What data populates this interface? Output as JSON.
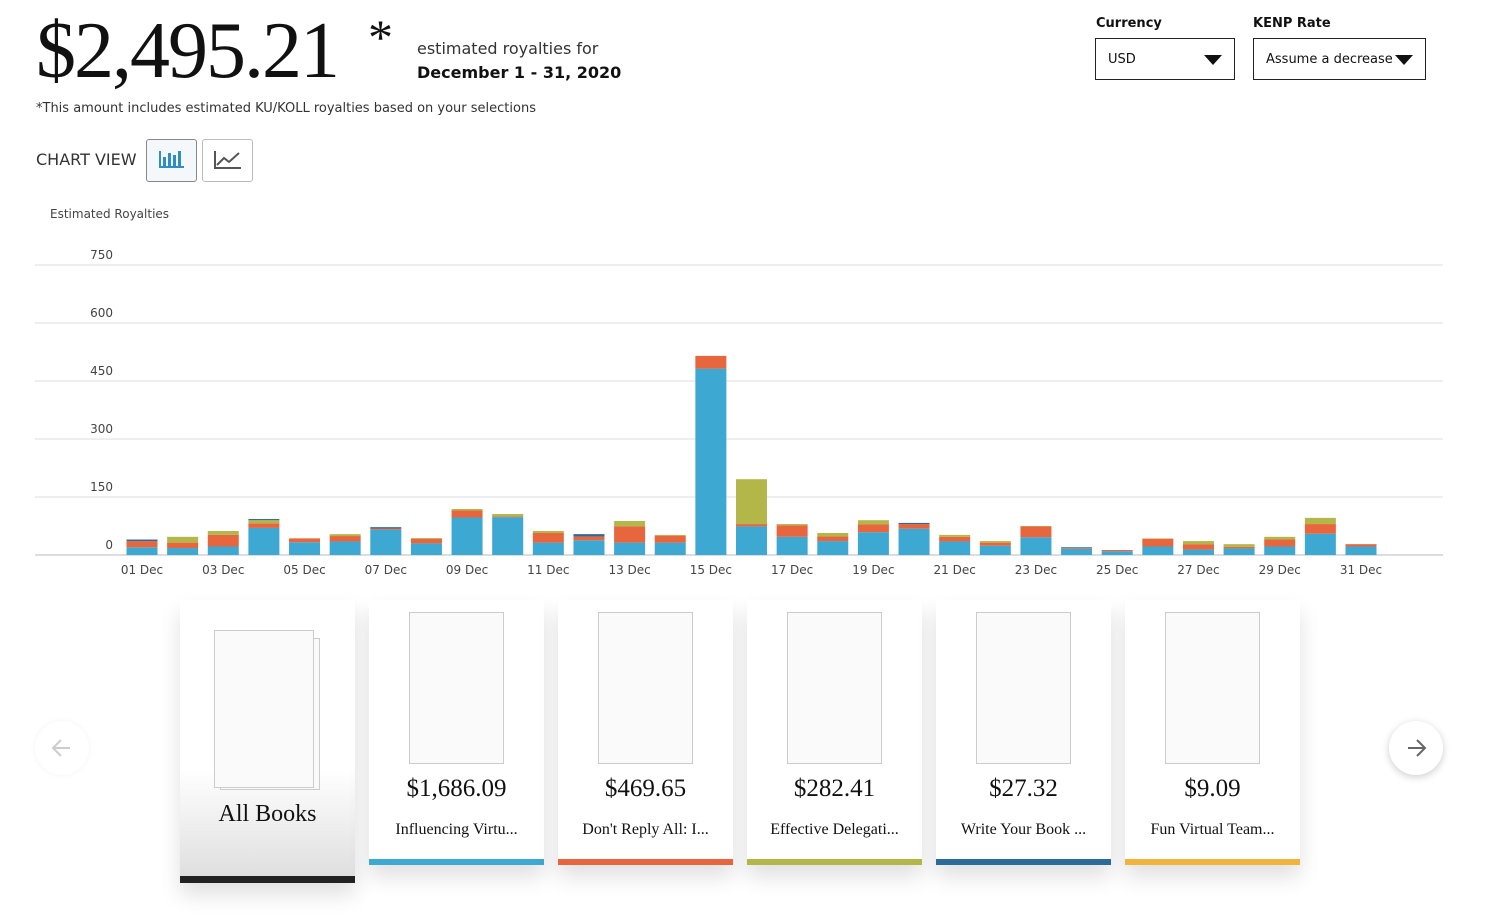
{
  "header": {
    "amount": "$2,495.21",
    "asterisk": "*",
    "caption": "estimated royalties for",
    "period": "December 1 - 31, 2020",
    "note": "*This amount includes estimated KU/KOLL royalties based on your selections",
    "chart_view": "CHART VIEW"
  },
  "controls": {
    "currency_label": "Currency",
    "currency_value": "USD",
    "kenp_label": "KENP Rate",
    "kenp_value": "Assume a decrease"
  },
  "chart_data": {
    "type": "stacked-bar",
    "y_label": "Estimated Royalties",
    "categories": [
      "01 Dec",
      null,
      "03 Dec",
      null,
      "05 Dec",
      null,
      "07 Dec",
      null,
      "09 Dec",
      null,
      "11 Dec",
      null,
      "13 Dec",
      null,
      "15 Dec",
      null,
      "17 Dec",
      null,
      "19 Dec",
      null,
      "21 Dec",
      null,
      "23 Dec",
      null,
      "25 Dec",
      null,
      "27 Dec",
      null,
      "29 Dec",
      null,
      "31 Dec"
    ],
    "series": [
      {
        "color": "#3da8d1",
        "values": [
          20,
          18,
          22,
          70,
          33,
          35,
          65,
          30,
          97,
          98,
          32,
          38,
          32,
          32,
          482,
          74,
          47,
          36,
          59,
          68,
          35,
          24,
          46,
          16,
          10,
          22,
          14,
          17,
          22,
          55,
          22
        ]
      },
      {
        "color": "#e8663d",
        "values": [
          16,
          14,
          30,
          12,
          10,
          14,
          3,
          12,
          18,
          2,
          25,
          10,
          42,
          18,
          33,
          6,
          30,
          12,
          20,
          12,
          12,
          8,
          28,
          2,
          3,
          20,
          14,
          4,
          18,
          25,
          6
        ]
      },
      {
        "color": "#b3b74a",
        "values": [
          0,
          15,
          10,
          8,
          0,
          5,
          0,
          2,
          4,
          6,
          5,
          0,
          14,
          2,
          0,
          116,
          3,
          9,
          11,
          0,
          5,
          4,
          1,
          0,
          0,
          1,
          8,
          7,
          7,
          16,
          0
        ]
      },
      {
        "color": "#2b6a99",
        "values": [
          4,
          0,
          0,
          3,
          0,
          0,
          4,
          0,
          0,
          0,
          0,
          6,
          0,
          0,
          0,
          0,
          0,
          0,
          0,
          3,
          0,
          0,
          0,
          2,
          0,
          0,
          0,
          0,
          0,
          0,
          0
        ]
      }
    ],
    "ylim": [
      0,
      750
    ],
    "yticks": [
      0,
      150,
      300,
      450,
      600,
      750
    ],
    "grid": true
  },
  "books": {
    "all": "All Books",
    "items": [
      {
        "price": "$1,686.09",
        "title": "Influencing Virtu...",
        "color": "#3da8d1"
      },
      {
        "price": "$469.65",
        "title": "Don't Reply All: I...",
        "color": "#e8663d"
      },
      {
        "price": "$282.41",
        "title": "Effective Delegati...",
        "color": "#b3b74a"
      },
      {
        "price": "$27.32",
        "title": "Write Your Book ...",
        "color": "#2b6a99"
      },
      {
        "price": "$9.09",
        "title": "Fun Virtual Team...",
        "color": "#f0b43c"
      }
    ]
  }
}
